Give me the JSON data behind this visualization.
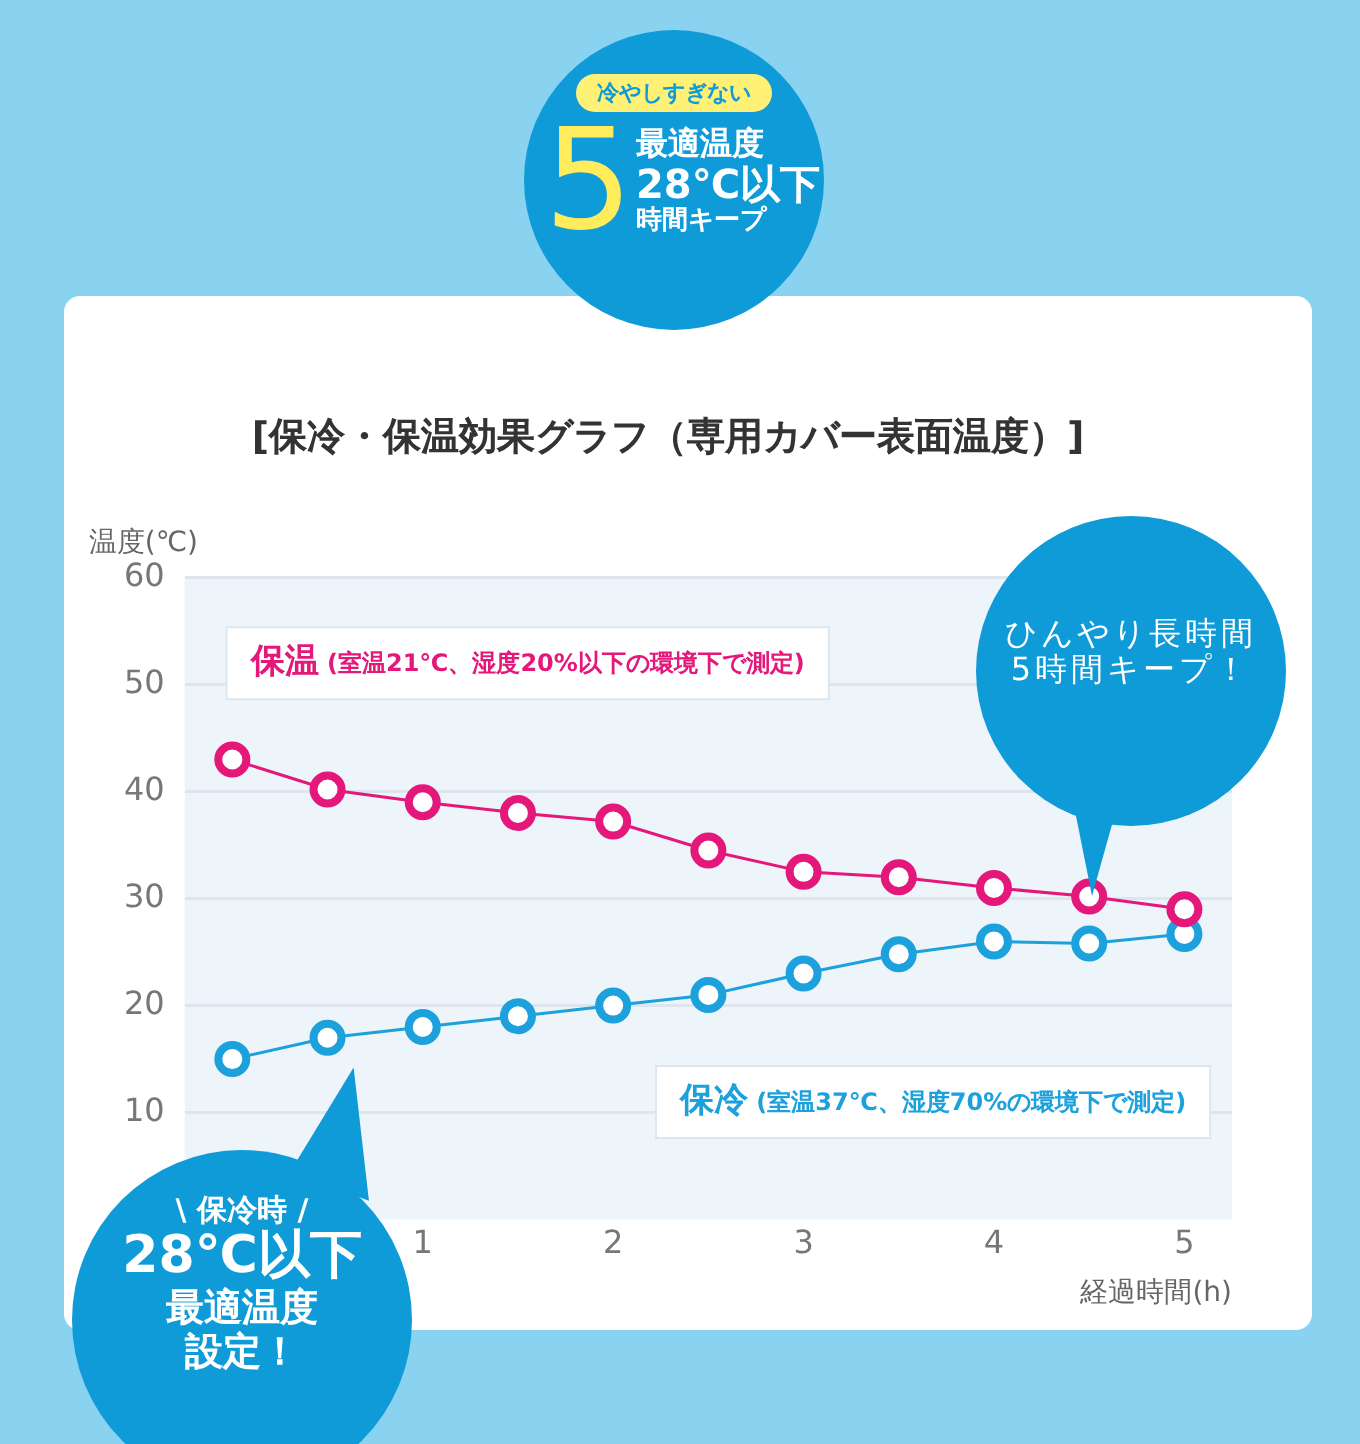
{
  "chart_data": {
    "type": "line",
    "title": "[保冷・保温効果グラフ（専用カバー表面温度）]",
    "xlabel": "経過時間(h)",
    "ylabel": "温度(℃)",
    "x": [
      0,
      0.5,
      1,
      1.5,
      2,
      2.5,
      3,
      3.5,
      4,
      4.5,
      5
    ],
    "series": [
      {
        "name": "保温 (室温21℃、湿度20%以下の環境下で測定)",
        "color": "#e4187a",
        "values": [
          43,
          40.2,
          39,
          38,
          37.2,
          34.5,
          32.5,
          32,
          31,
          30.2,
          29
        ]
      },
      {
        "name": "保冷 (室温37℃、湿度70%の環境下で測定)",
        "color": "#1ca1dc",
        "values": [
          15,
          17,
          18,
          19,
          20,
          21,
          23,
          24.8,
          26,
          25.8,
          26.7
        ]
      }
    ],
    "xlim": [
      -0.25,
      5.25
    ],
    "xticks": [
      1,
      2,
      3,
      4,
      5
    ],
    "ylim": [
      0,
      60
    ],
    "yticks": [
      10,
      20,
      30,
      40,
      50,
      60
    ],
    "grid": "y",
    "legend": false,
    "marker": "circle",
    "line_style": "solid",
    "annotations": [
      "ひんやり長時間",
      "5時間キープ！",
      "\\ 保冷時 /",
      "28℃以下",
      "最適温度",
      "設定！",
      "冷やしすぎない",
      "5",
      "最適温度",
      "28℃以下",
      "時間キープ"
    ]
  }
}
